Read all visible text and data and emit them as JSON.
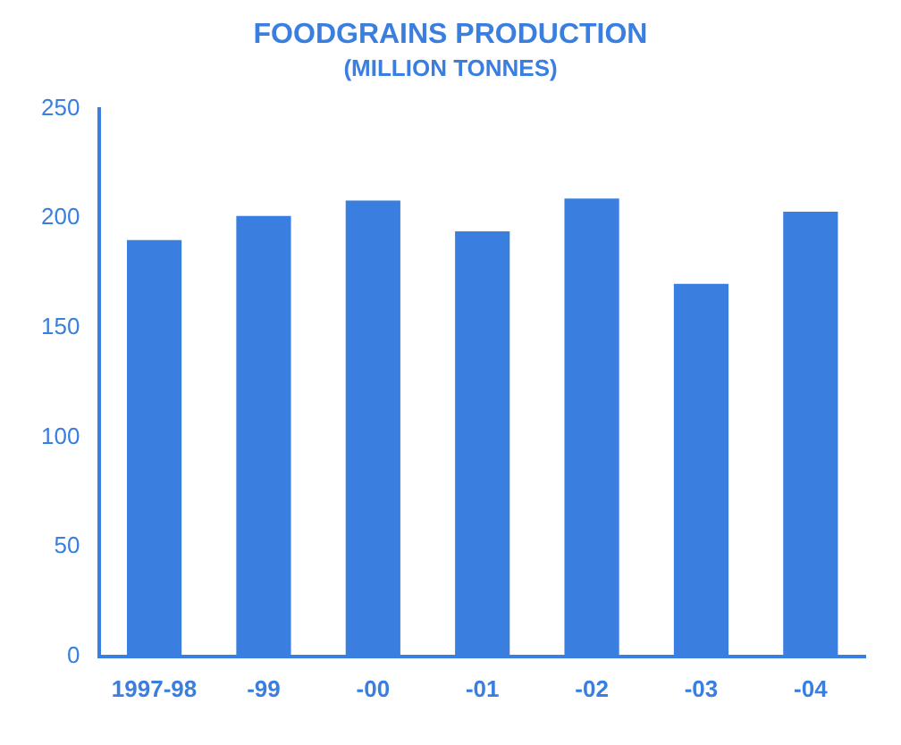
{
  "chart_data": {
    "type": "bar",
    "title": "FOODGRAINS PRODUCTION",
    "subtitle": "(MILLION TONNES)",
    "categories": [
      "1997-98",
      "-99",
      "-00",
      "-01",
      "-02",
      "-03",
      "-04"
    ],
    "values": [
      190,
      201,
      208,
      194,
      209,
      170,
      203
    ],
    "color": "#3a7fe0",
    "ylim": [
      0,
      250
    ],
    "yticks": [
      0,
      50,
      100,
      150,
      200,
      250
    ],
    "grid": false
  }
}
